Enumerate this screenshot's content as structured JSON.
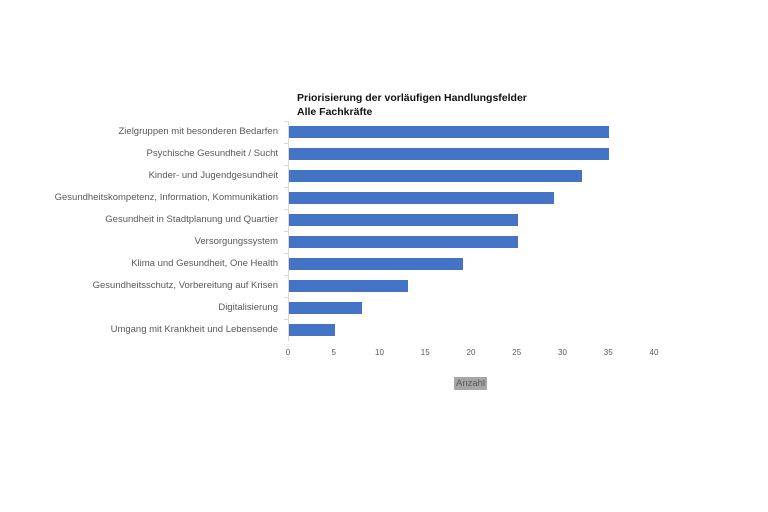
{
  "chart_data": {
    "type": "bar",
    "orientation": "horizontal",
    "title": "Priorisierung der vorläufigen Handlungsfelder",
    "subtitle": "Alle Fachkräfte",
    "xlabel": "Anzahl",
    "ylabel": "",
    "xlim": [
      0,
      40
    ],
    "xticks": [
      "0",
      "5",
      "10",
      "15",
      "20",
      "25",
      "30",
      "35",
      "40"
    ],
    "grid": false,
    "legend": null,
    "bar_color": "#4472c4",
    "categories": [
      "Zielgruppen mit besonderen Bedarfen",
      "Psychische Gesundheit / Sucht",
      "Kinder- und Jugendgesundheit",
      "Gesundheitskompetenz, Information, Kommunikation",
      "Gesundheit in Stadtplanung und Quartier",
      "Versorgungssystem",
      "Klima und Gesundheit, One Health",
      "Gesundheitsschutz, Vorbereitung auf Krisen",
      "Digitalisierung",
      "Umgang mit Krankheit und Lebensende"
    ],
    "values": [
      35,
      35,
      32,
      29,
      25,
      25,
      19,
      13,
      8,
      5
    ]
  }
}
